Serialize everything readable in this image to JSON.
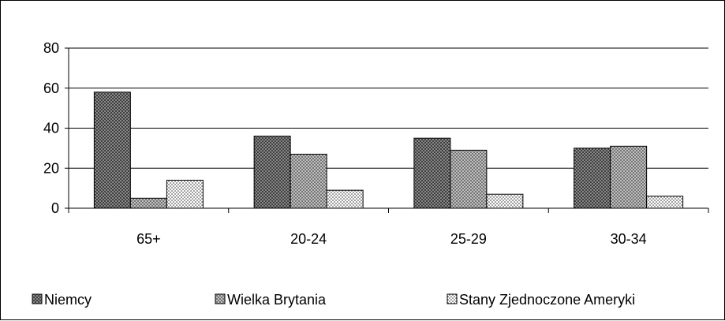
{
  "chart_data": {
    "type": "bar",
    "categories": [
      "65+",
      "20-24",
      "25-29",
      "30-34"
    ],
    "series": [
      {
        "name": "Niemcy",
        "values": [
          58,
          36,
          35,
          30
        ],
        "pattern": "dark-crosshatch"
      },
      {
        "name": "Wielka Brytania",
        "values": [
          5,
          27,
          29,
          31
        ],
        "pattern": "light-crosshatch"
      },
      {
        "name": "Stany Zjednoczone Ameryki",
        "values": [
          14,
          9,
          7,
          6
        ],
        "pattern": "dots"
      }
    ],
    "ylim": [
      0,
      80
    ],
    "yticks": [
      0,
      20,
      40,
      60,
      80
    ],
    "grid": true,
    "legend_position": "bottom",
    "title": "",
    "xlabel": "",
    "ylabel": ""
  },
  "colors": {
    "dark_fill": "#2b2b2b",
    "mid_fill": "#8a8a8a",
    "light_fill": "#ffffff",
    "gridline": "#000000"
  }
}
